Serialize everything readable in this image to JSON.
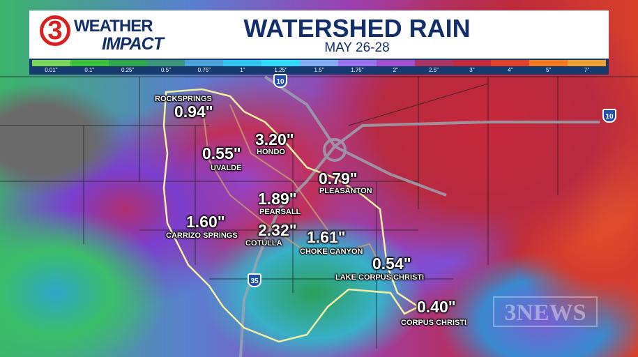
{
  "header": {
    "logo_number": "3",
    "logo_weather": "WEATHER",
    "logo_impact": "IMPACT",
    "title": "WATERSHED RAIN",
    "subtitle": "MAY 26-28"
  },
  "legend": [
    {
      "label": "0.01\"",
      "color": "#7ad55a"
    },
    {
      "label": "0.1\"",
      "color": "#3cc23a"
    },
    {
      "label": "0.25\"",
      "color": "#2ea84a"
    },
    {
      "label": "0.5\"",
      "color": "#3a957a"
    },
    {
      "label": "0.75\"",
      "color": "#4aa3dc"
    },
    {
      "label": "1\"",
      "color": "#34c4f2"
    },
    {
      "label": "1.25\"",
      "color": "#30dcfc"
    },
    {
      "label": "1.5\"",
      "color": "#80aef0"
    },
    {
      "label": "1.75\"",
      "color": "#9a72ee"
    },
    {
      "label": "2\"",
      "color": "#a24ed0"
    },
    {
      "label": "2.5\"",
      "color": "#a83262"
    },
    {
      "label": "3\"",
      "color": "#c2283a"
    },
    {
      "label": "4\"",
      "color": "#e0422c"
    },
    {
      "label": "5\"",
      "color": "#f47a22"
    },
    {
      "label": "7\"",
      "color": "#eea032"
    }
  ],
  "highways": [
    "10",
    "10",
    "35"
  ],
  "locations": [
    {
      "name": "ROCKSPRINGS",
      "value": "0.94\""
    },
    {
      "name": "HONDO",
      "value": "3.20\""
    },
    {
      "name": "UVALDE",
      "value": "0.55\""
    },
    {
      "name": "PLEASANTON",
      "value": "0.79\""
    },
    {
      "name": "PEARSALL",
      "value": "1.89\""
    },
    {
      "name": "CARRIZO SPRINGS",
      "value": "1.60\""
    },
    {
      "name": "COTULLA",
      "value": "2.32\""
    },
    {
      "name": "CHOKE CANYON",
      "value": "1.61\""
    },
    {
      "name": "LAKE CORPUS CHRISTI",
      "value": "0.54\""
    },
    {
      "name": "CORPUS CHRISTI",
      "value": "0.40\""
    }
  ],
  "watermark": "3NEWS",
  "colors": {
    "brand_navy": "#122f6b",
    "brand_red": "#d8201f",
    "watershed_outline": "#f4f0a0"
  }
}
